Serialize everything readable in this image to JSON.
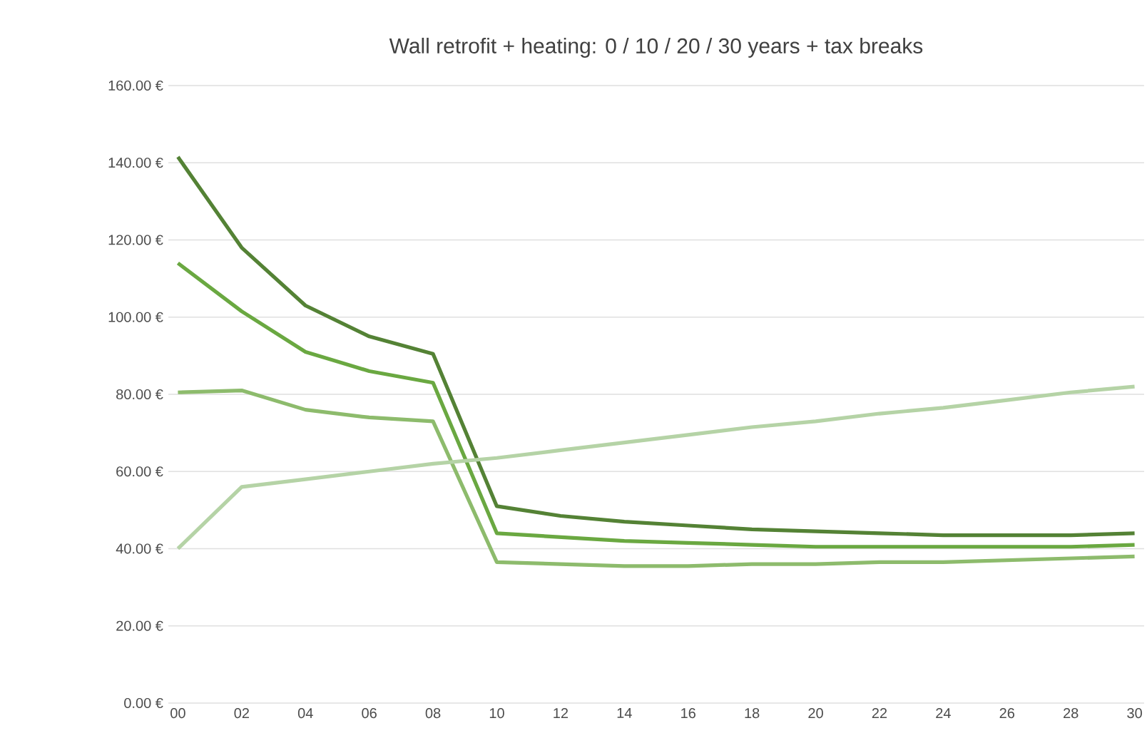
{
  "chart_data": {
    "type": "line",
    "title": "Wall retrofit + heating: 0 / 10 / 20 / 30 years + tax breaks",
    "categories": [
      "00",
      "02",
      "04",
      "06",
      "08",
      "10",
      "12",
      "14",
      "16",
      "18",
      "20",
      "22",
      "24",
      "26",
      "28",
      "30"
    ],
    "series": [
      {
        "color": "#548235",
        "values": [
          141.5,
          118,
          103,
          95,
          90.5,
          51,
          48.5,
          47,
          46,
          45,
          44.5,
          44,
          43.5,
          43.5,
          43.5,
          44
        ]
      },
      {
        "color": "#6aa841",
        "values": [
          114,
          101.5,
          91,
          86,
          83,
          44,
          43,
          42,
          41.5,
          41,
          40.5,
          40.5,
          40.5,
          40.5,
          40.5,
          41
        ]
      },
      {
        "color": "#8dbb6c",
        "values": [
          80.5,
          81,
          76,
          74,
          73,
          36.5,
          36,
          35.5,
          35.5,
          36,
          36,
          36.5,
          36.5,
          37,
          37.5,
          38
        ]
      },
      {
        "color": "#b5d3a6",
        "values": [
          40,
          56,
          58,
          60,
          62,
          63.5,
          65.5,
          67.5,
          69.5,
          71.5,
          73,
          75,
          76.5,
          78.5,
          80.5,
          82
        ]
      }
    ],
    "ylim": [
      0,
      160
    ],
    "yticks": [
      {
        "value": 0,
        "label": "0.00 €"
      },
      {
        "value": 20,
        "label": "20.00 €"
      },
      {
        "value": 40,
        "label": "40.00 €"
      },
      {
        "value": 60,
        "label": "60.00 €"
      },
      {
        "value": 80,
        "label": "80.00 €"
      },
      {
        "value": 100,
        "label": "100.00 €"
      },
      {
        "value": 120,
        "label": "120.00 €"
      },
      {
        "value": 140,
        "label": "140.00 €"
      },
      {
        "value": 160,
        "label": "160.00 €"
      }
    ],
    "grid": "y",
    "marker": "none",
    "line_style": "solid",
    "legend": false
  }
}
